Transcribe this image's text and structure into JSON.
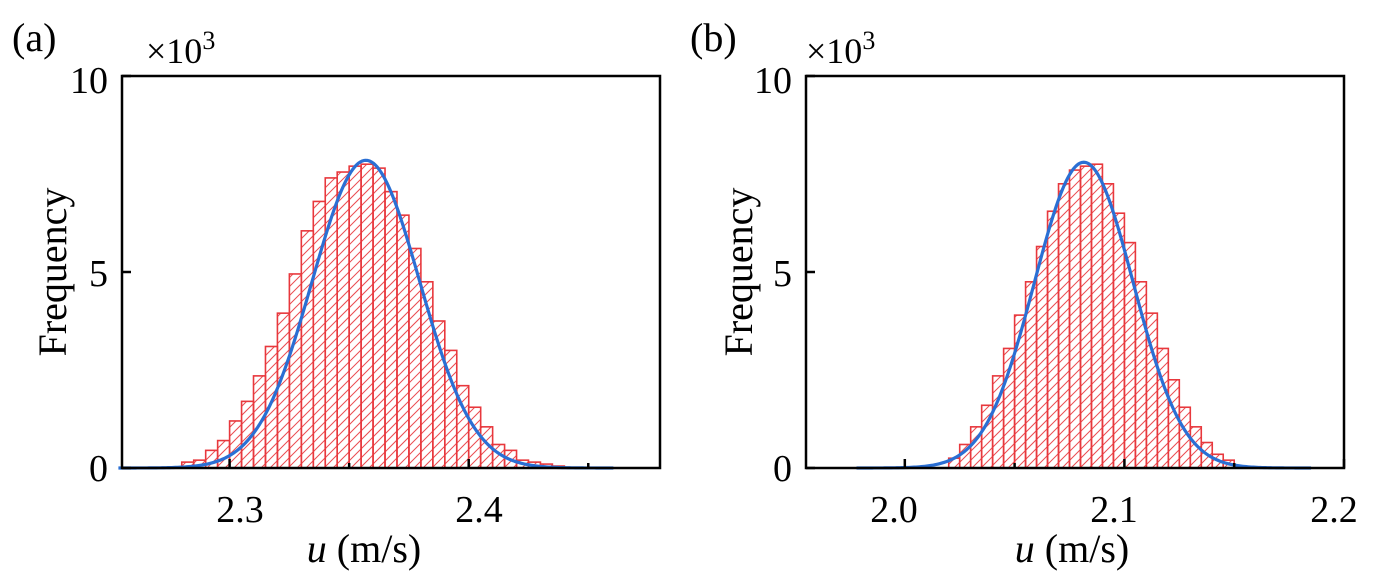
{
  "colors": {
    "bars": "#e8383d",
    "fit": "#2a6fd4",
    "axes": "#000000"
  },
  "chart_data": [
    {
      "type": "bar",
      "panel_label": "(a)",
      "scale_label": "×10",
      "scale_exponent": "3",
      "title": "",
      "xlabel_var": "u",
      "xlabel_unit": " (m/s)",
      "ylabel": "Frequency",
      "xlim": [
        2.255,
        2.48
      ],
      "ylim": [
        0,
        10
      ],
      "xticks": [
        2.3,
        2.4
      ],
      "xtick_labels": [
        "2.3",
        "2.4"
      ],
      "xminor": [
        2.35,
        2.45
      ],
      "yticks": [
        0,
        5,
        10
      ],
      "ytick_labels": [
        "0",
        "5",
        "10"
      ],
      "bin_width": 0.005,
      "bin_starts": [
        2.28,
        2.285,
        2.29,
        2.295,
        2.3,
        2.305,
        2.31,
        2.315,
        2.32,
        2.325,
        2.33,
        2.335,
        2.34,
        2.345,
        2.35,
        2.355,
        2.36,
        2.365,
        2.37,
        2.375,
        2.38,
        2.385,
        2.39,
        2.395,
        2.4,
        2.405,
        2.41,
        2.415,
        2.42,
        2.425,
        2.43,
        2.435
      ],
      "values": [
        0.15,
        0.2,
        0.45,
        0.7,
        1.2,
        1.7,
        2.35,
        3.1,
        3.95,
        4.95,
        6.05,
        6.8,
        7.4,
        7.55,
        7.7,
        7.75,
        7.65,
        7.05,
        6.45,
        5.6,
        4.75,
        3.75,
        3.0,
        2.1,
        1.55,
        1.05,
        0.6,
        0.45,
        0.2,
        0.15,
        0.1,
        0.05
      ],
      "fit": {
        "type": "gaussian",
        "mu": 2.357,
        "sigma": 0.0225,
        "peak": 7.85
      }
    },
    {
      "type": "bar",
      "panel_label": "(b)",
      "scale_label": "×10",
      "scale_exponent": "3",
      "title": "",
      "xlabel_var": "u",
      "xlabel_unit": " (m/s)",
      "ylabel": "Frequency",
      "xlim": [
        1.955,
        2.2
      ],
      "ylim": [
        0,
        10
      ],
      "xticks": [
        2.0,
        2.1,
        2.2
      ],
      "xtick_labels": [
        "2.0",
        "2.1",
        "2.2"
      ],
      "xminor": [
        2.05,
        2.15
      ],
      "yticks": [
        0,
        5,
        10
      ],
      "ytick_labels": [
        "0",
        "5",
        "10"
      ],
      "bin_width": 0.005,
      "bin_starts": [
        2.02,
        2.025,
        2.03,
        2.035,
        2.04,
        2.045,
        2.05,
        2.055,
        2.06,
        2.065,
        2.07,
        2.075,
        2.08,
        2.085,
        2.09,
        2.095,
        2.1,
        2.105,
        2.11,
        2.115,
        2.12,
        2.125,
        2.13,
        2.135,
        2.14,
        2.145
      ],
      "values": [
        0.25,
        0.6,
        1.05,
        1.6,
        2.35,
        3.05,
        3.9,
        4.75,
        5.65,
        6.55,
        7.25,
        7.6,
        7.7,
        7.75,
        7.25,
        6.5,
        5.75,
        4.75,
        3.95,
        3.05,
        2.25,
        1.55,
        1.05,
        0.65,
        0.35,
        0.2
      ],
      "fit": {
        "type": "gaussian",
        "mu": 2.0815,
        "sigma": 0.0225,
        "peak": 7.8
      }
    }
  ]
}
